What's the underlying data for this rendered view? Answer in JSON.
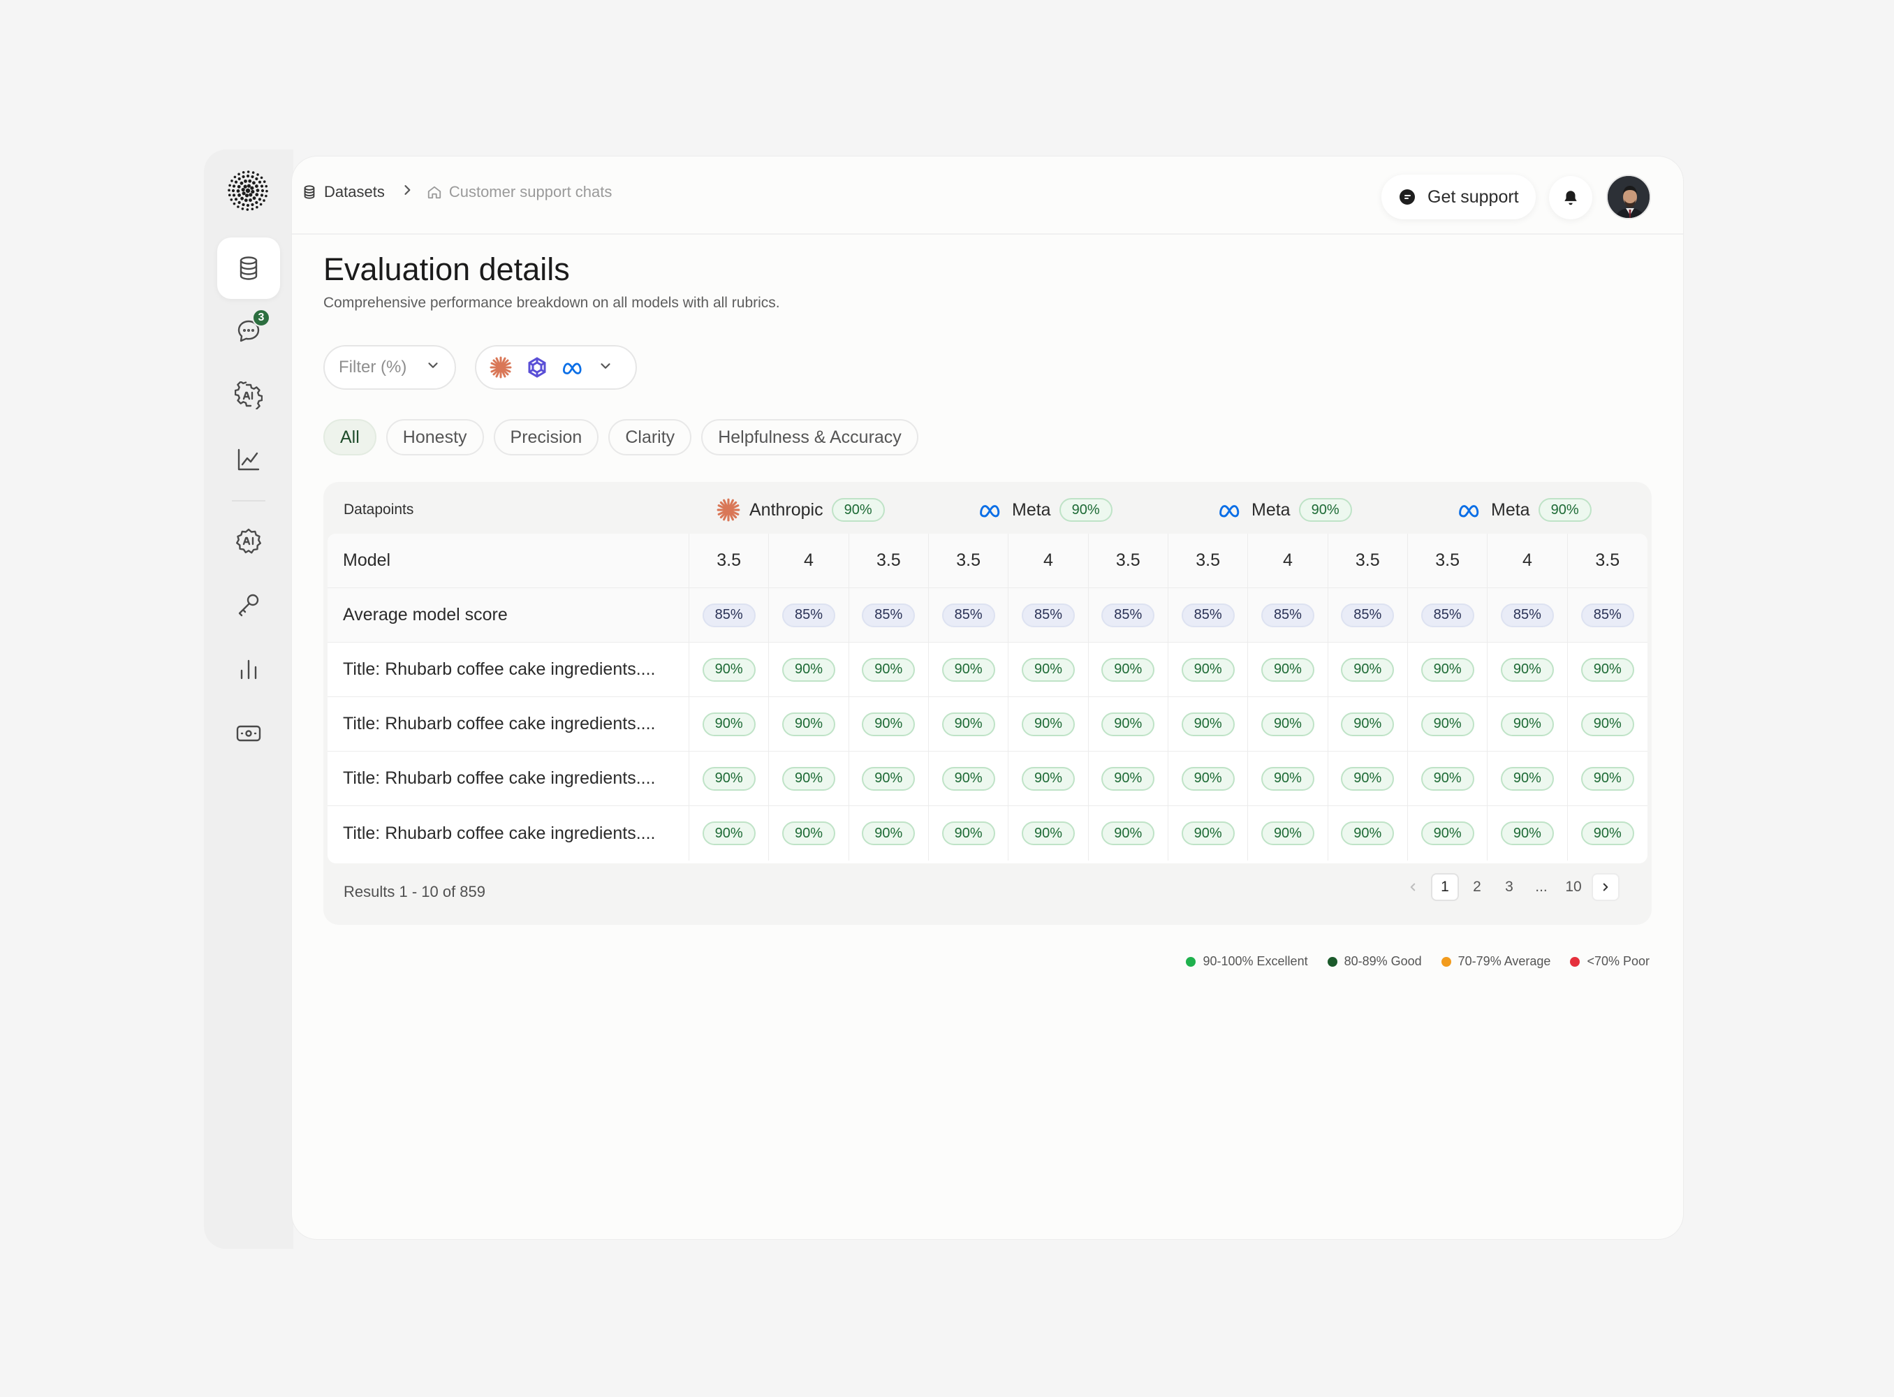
{
  "breadcrumb": {
    "items": [
      "Datasets",
      "Customer support chats"
    ]
  },
  "header": {
    "support_label": "Get support"
  },
  "sidebar": {
    "badge_count": "3",
    "items": [
      "datasets",
      "chats",
      "ai-settings",
      "analytics",
      "ai-models",
      "api-keys",
      "reports",
      "billing"
    ]
  },
  "page": {
    "title": "Evaluation details",
    "subtitle": "Comprehensive performance breakdown on all models with all rubrics."
  },
  "filter": {
    "placeholder": "Filter (%)"
  },
  "tabs": [
    "All",
    "Honesty",
    "Precision",
    "Clarity",
    "Helpfulness & Accuracy"
  ],
  "table": {
    "header_label": "Datapoints",
    "providers": [
      {
        "name": "Anthropic",
        "score": "90%",
        "icon": "anthropic-icon"
      },
      {
        "name": "Meta",
        "score": "90%",
        "icon": "meta-icon"
      },
      {
        "name": "Meta",
        "score": "90%",
        "icon": "meta-icon"
      },
      {
        "name": "Meta",
        "score": "90%",
        "icon": "meta-icon"
      }
    ],
    "model_row_label": "Model",
    "models": [
      "3.5",
      "4",
      "3.5",
      "3.5",
      "4",
      "3.5",
      "3.5",
      "4",
      "3.5",
      "3.5",
      "4",
      "3.5"
    ],
    "avg_row_label": "Average model score",
    "avg_scores": [
      "85%",
      "85%",
      "85%",
      "85%",
      "85%",
      "85%",
      "85%",
      "85%",
      "85%",
      "85%",
      "85%",
      "85%"
    ],
    "rows": [
      {
        "title": "Title: Rhubarb coffee cake ingredients....",
        "scores": [
          "90%",
          "90%",
          "90%",
          "90%",
          "90%",
          "90%",
          "90%",
          "90%",
          "90%",
          "90%",
          "90%",
          "90%"
        ]
      },
      {
        "title": "Title: Rhubarb coffee cake ingredients....",
        "scores": [
          "90%",
          "90%",
          "90%",
          "90%",
          "90%",
          "90%",
          "90%",
          "90%",
          "90%",
          "90%",
          "90%",
          "90%"
        ]
      },
      {
        "title": "Title: Rhubarb coffee cake ingredients....",
        "scores": [
          "90%",
          "90%",
          "90%",
          "90%",
          "90%",
          "90%",
          "90%",
          "90%",
          "90%",
          "90%",
          "90%",
          "90%"
        ]
      },
      {
        "title": "Title: Rhubarb coffee cake ingredients....",
        "scores": [
          "90%",
          "90%",
          "90%",
          "90%",
          "90%",
          "90%",
          "90%",
          "90%",
          "90%",
          "90%",
          "90%",
          "90%"
        ]
      }
    ],
    "results_text": "Results 1 - 10 of 859",
    "pages": [
      "1",
      "2",
      "3",
      "...",
      "10"
    ],
    "current_page": "1"
  },
  "legend": [
    {
      "label": "90-100% Excellent",
      "color": "#1fb14d"
    },
    {
      "label": "80-89% Good",
      "color": "#1b5a2b"
    },
    {
      "label": "70-79% Average",
      "color": "#f29b1d"
    },
    {
      "label": "<70% Poor",
      "color": "#e5303c"
    }
  ],
  "colors": {
    "anthropic": "#d97757",
    "meta": "#0a6ee6",
    "openai_like": "#5a4fd6",
    "accent_green": "#1d6a35"
  }
}
